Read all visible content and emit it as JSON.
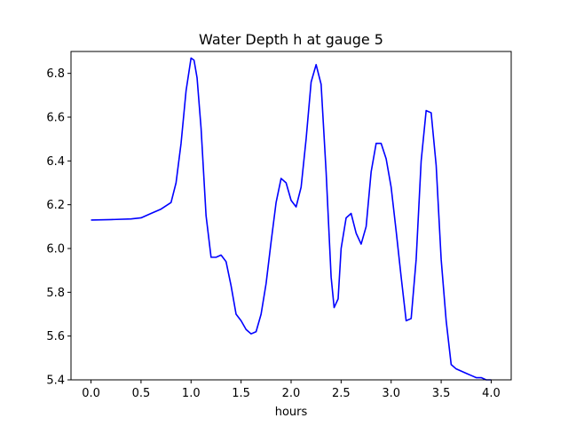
{
  "chart_data": {
    "type": "line",
    "title": "Water Depth h at gauge 5",
    "xlabel": "hours",
    "ylabel": "",
    "xlim": [
      -0.2,
      4.2
    ],
    "ylim": [
      5.4,
      6.9
    ],
    "xticks": [
      0.0,
      0.5,
      1.0,
      1.5,
      2.0,
      2.5,
      3.0,
      3.5,
      4.0
    ],
    "xtick_labels": [
      "0.0",
      "0.5",
      "1.0",
      "1.5",
      "2.0",
      "2.5",
      "3.0",
      "3.5",
      "4.0"
    ],
    "yticks": [
      5.4,
      5.6,
      5.8,
      6.0,
      6.2,
      6.4,
      6.6,
      6.8
    ],
    "ytick_labels": [
      "5.4",
      "5.6",
      "5.8",
      "6.0",
      "6.2",
      "6.4",
      "6.6",
      "6.8"
    ],
    "grid": false,
    "series": [
      {
        "color": "#0000ff",
        "x": [
          0.0,
          0.2,
          0.4,
          0.5,
          0.6,
          0.7,
          0.8,
          0.85,
          0.9,
          0.95,
          1.0,
          1.03,
          1.06,
          1.1,
          1.15,
          1.2,
          1.25,
          1.3,
          1.35,
          1.4,
          1.45,
          1.5,
          1.55,
          1.6,
          1.65,
          1.7,
          1.75,
          1.8,
          1.85,
          1.9,
          1.95,
          2.0,
          2.05,
          2.1,
          2.15,
          2.2,
          2.25,
          2.3,
          2.35,
          2.4,
          2.43,
          2.47,
          2.5,
          2.55,
          2.6,
          2.65,
          2.7,
          2.75,
          2.8,
          2.85,
          2.9,
          2.95,
          3.0,
          3.05,
          3.1,
          3.15,
          3.2,
          3.25,
          3.3,
          3.35,
          3.4,
          3.45,
          3.5,
          3.55,
          3.6,
          3.65,
          3.7,
          3.75,
          3.8,
          3.85,
          3.9,
          3.95,
          4.0
        ],
        "y": [
          6.13,
          6.132,
          6.135,
          6.14,
          6.16,
          6.18,
          6.21,
          6.3,
          6.48,
          6.72,
          6.87,
          6.86,
          6.78,
          6.55,
          6.15,
          5.96,
          5.96,
          5.97,
          5.94,
          5.83,
          5.7,
          5.67,
          5.63,
          5.61,
          5.62,
          5.7,
          5.84,
          6.03,
          6.21,
          6.32,
          6.3,
          6.22,
          6.19,
          6.28,
          6.5,
          6.76,
          6.84,
          6.75,
          6.35,
          5.87,
          5.73,
          5.77,
          6.0,
          6.14,
          6.16,
          6.07,
          6.02,
          6.1,
          6.35,
          6.48,
          6.48,
          6.41,
          6.28,
          6.08,
          5.87,
          5.67,
          5.68,
          5.95,
          6.4,
          6.63,
          6.62,
          6.38,
          5.95,
          5.67,
          5.47,
          5.45,
          5.44,
          5.43,
          5.42,
          5.41,
          5.41,
          5.4,
          5.4
        ]
      }
    ]
  }
}
